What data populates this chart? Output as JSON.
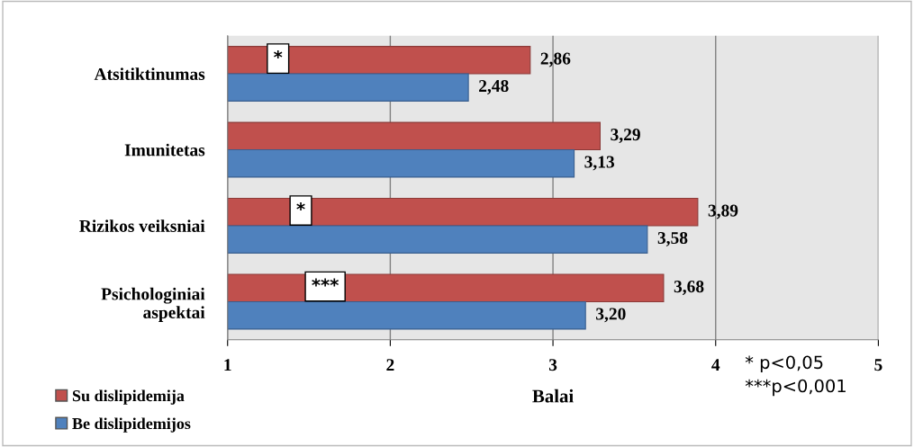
{
  "chart_data": {
    "type": "bar",
    "orientation": "horizontal",
    "xlabel": "Balai",
    "categories": [
      "Atsitiktinumas",
      "Imunitetas",
      "Rizikos veiksniai",
      "Psichologiniai\naspektai"
    ],
    "series": [
      {
        "name": "Su dislipidemija",
        "color": "#c0504d",
        "values": [
          2.86,
          3.29,
          3.89,
          3.68
        ],
        "value_labels": [
          "2,86",
          "3,29",
          "3,89",
          "3,68"
        ]
      },
      {
        "name": "Be dislipidemijos",
        "color": "#4f81bd",
        "values": [
          2.48,
          3.13,
          3.58,
          3.2
        ],
        "value_labels": [
          "2,48",
          "3,13",
          "3,58",
          "3,20"
        ]
      }
    ],
    "xlim": [
      1,
      5
    ],
    "xticks": [
      1,
      2,
      3,
      4,
      5
    ],
    "grid": "x",
    "legend": "bottom left",
    "annotations": [
      {
        "text": "*",
        "x": 1.31,
        "y": "Atsitiktinumas"
      },
      {
        "text": "*",
        "x": 1.45,
        "y": "Rizikos veiksniai"
      },
      {
        "text": "***",
        "x": 1.6,
        "y": "Psichologiniai\naspektai"
      },
      "* p<0,05\n***p<0,001"
    ]
  }
}
